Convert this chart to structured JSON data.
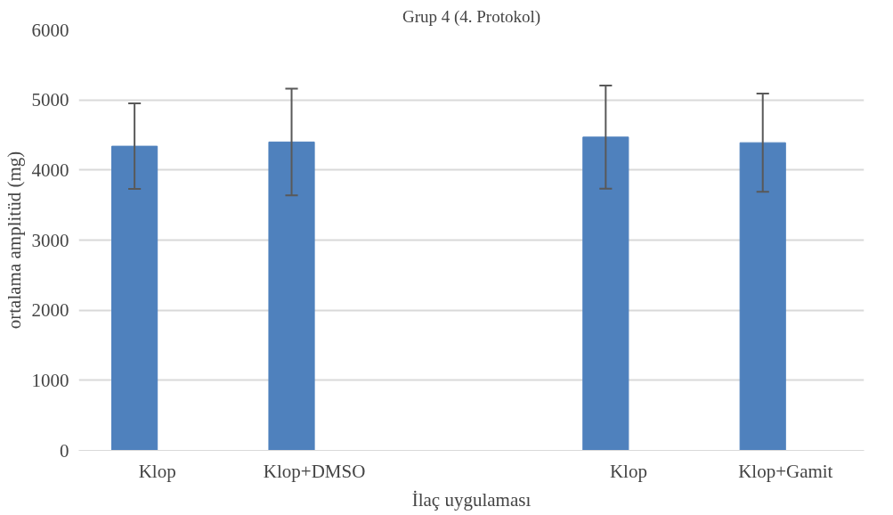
{
  "chart_data": {
    "type": "bar",
    "title": "Grup 4 (4. Protokol)",
    "xlabel": "İlaç uygulaması",
    "ylabel": "ortalama amplitüd (mg)",
    "categories": [
      "Klop",
      "Klop+DMSO",
      null,
      "Klop",
      "Klop+Gamit"
    ],
    "series": [
      {
        "color": "#4f81bd",
        "values": [
          4340,
          4400,
          null,
          4470,
          4390
        ],
        "errors": [
          610,
          760,
          null,
          735,
          700
        ]
      },
      {
        "color": "#c0504d",
        "values": [
          0,
          0,
          null,
          0,
          0
        ]
      }
    ],
    "ylim": [
      0,
      6000
    ],
    "yticks": [
      0,
      1000,
      2000,
      3000,
      4000,
      5000,
      6000
    ],
    "grid": "y"
  }
}
